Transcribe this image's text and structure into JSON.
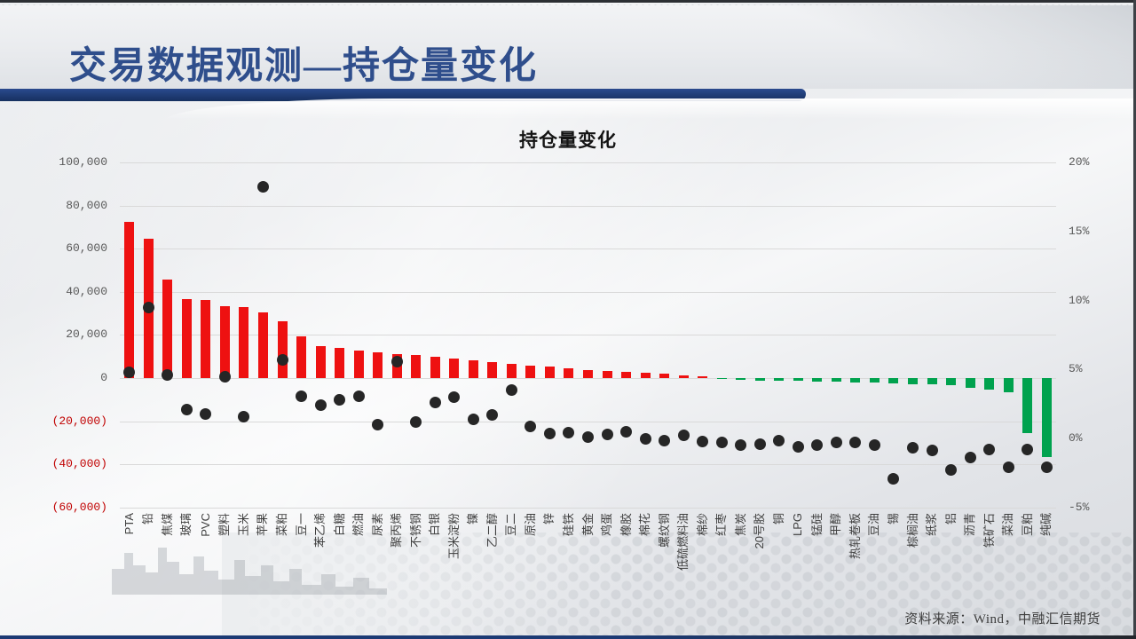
{
  "slide": {
    "title": "交易数据观测—持仓量变化",
    "source_note": "资料来源：Wind，中融汇信期货"
  },
  "chart_data": {
    "type": "combo-bar-scatter",
    "title": "持仓量变化",
    "legend": "none",
    "gridlines": "horizontal",
    "categories": [
      "PTA",
      "铅",
      "焦煤",
      "玻璃",
      "PVC",
      "塑料",
      "玉米",
      "苹果",
      "菜粕",
      "豆一",
      "苯乙烯",
      "白糖",
      "燃油",
      "尿素",
      "聚丙烯",
      "不锈钢",
      "白银",
      "玉米淀粉",
      "镍",
      "乙二醇",
      "豆二",
      "原油",
      "锌",
      "硅铁",
      "黄金",
      "鸡蛋",
      "橡胶",
      "棉花",
      "螺纹钢",
      "低硫燃料油",
      "棉纱",
      "红枣",
      "焦炭",
      "20号胶",
      "铜",
      "LPG",
      "锰硅",
      "甲醇",
      "热轧卷板",
      "豆油",
      "锡",
      "棕榈油",
      "纸浆",
      "铝",
      "沥青",
      "铁矿石",
      "菜油",
      "豆粕",
      "纯碱"
    ],
    "series": [
      {
        "id": "bars",
        "type": "bar",
        "axis": "left",
        "values": [
          72500,
          64500,
          45500,
          36800,
          36300,
          33500,
          33000,
          30500,
          26500,
          19500,
          15000,
          14200,
          12800,
          11800,
          11300,
          10800,
          10000,
          9200,
          8400,
          7600,
          6800,
          6000,
          5200,
          4400,
          3800,
          3300,
          2900,
          2600,
          2300,
          1300,
          800,
          -500,
          -800,
          -1000,
          -1200,
          -1400,
          -1600,
          -1800,
          -2000,
          -2200,
          -2400,
          -2700,
          -3000,
          -3300,
          -4500,
          -5500,
          -6500,
          -25500,
          -36600
        ]
      },
      {
        "id": "dots",
        "type": "scatter",
        "axis": "right",
        "values": [
          4.8,
          9.5,
          4.6,
          2.1,
          1.8,
          4.5,
          1.6,
          18.2,
          5.7,
          3.1,
          2.4,
          2.8,
          3.1,
          1.0,
          5.6,
          1.2,
          2.6,
          3.0,
          1.4,
          1.7,
          3.5,
          0.9,
          0.4,
          0.45,
          0.1,
          0.3,
          0.5,
          0.0,
          -0.15,
          0.25,
          -0.2,
          -0.25,
          -0.45,
          -0.4,
          -0.15,
          -0.6,
          -0.45,
          -0.3,
          -0.25,
          -0.45,
          -2.9,
          -0.65,
          -0.85,
          -2.25,
          -1.35,
          -0.8,
          -2.05,
          -0.8,
          -2.05
        ]
      }
    ],
    "left_axis": {
      "min": -60000,
      "max": 100000,
      "ticks": [
        {
          "label": "100,000",
          "value": 100000
        },
        {
          "label": "80,000",
          "value": 80000
        },
        {
          "label": "60,000",
          "value": 60000
        },
        {
          "label": "40,000",
          "value": 40000
        },
        {
          "label": "20,000",
          "value": 20000
        },
        {
          "label": "0",
          "value": 0
        },
        {
          "label": "(20,000)",
          "value": -20000
        },
        {
          "label": "(40,000)",
          "value": -40000
        },
        {
          "label": "(60,000)",
          "value": -60000
        }
      ]
    },
    "right_axis": {
      "min": -5,
      "max": 20,
      "ticks": [
        {
          "label": "20%",
          "value": 20
        },
        {
          "label": "15%",
          "value": 15
        },
        {
          "label": "10%",
          "value": 10
        },
        {
          "label": "5%",
          "value": 5
        },
        {
          "label": "0%",
          "value": 0
        },
        {
          "label": "-5%",
          "value": -5
        }
      ]
    },
    "colors": {
      "bar_positive": "#ee1111",
      "bar_negative": "#00a24e",
      "dot": "#262626",
      "grid": "#d9d9d9",
      "tick_text": "#595959",
      "tick_negative": "#c00000",
      "title_navy": "#2f4e8c"
    }
  }
}
